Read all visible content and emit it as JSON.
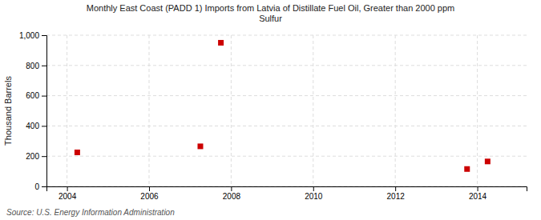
{
  "chart_data": {
    "type": "scatter",
    "title": "Monthly East Coast (PADD 1) Imports from Latvia of Distillate Fuel Oil, Greater than 2000 ppm\nSulfur",
    "y_label": "Thousand Barrels",
    "source": "Source: U.S. Energy Information Administration",
    "x": [
      2004.25,
      2007.25,
      2007.75,
      2013.75,
      2014.25
    ],
    "values": [
      225,
      265,
      950,
      115,
      165
    ],
    "color": "#cc0000",
    "marker": "square",
    "xlim": [
      2003.5,
      2015.2
    ],
    "ylim": [
      0,
      1000
    ],
    "xticks": [
      2004,
      2006,
      2008,
      2010,
      2012,
      2014
    ],
    "yticks": [
      0,
      200,
      400,
      600,
      800,
      {
        "value": 1000,
        "label": "1,000"
      }
    ],
    "grid": true
  }
}
